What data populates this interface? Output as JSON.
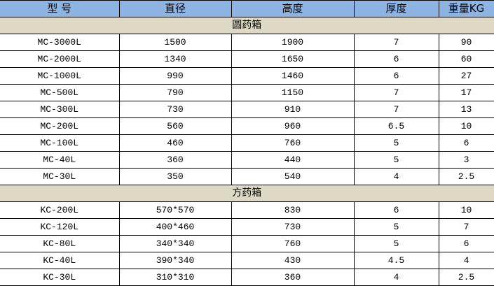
{
  "headers": [
    "型 号",
    "直径",
    "高度",
    "厚度",
    "重量KG"
  ],
  "sections": [
    {
      "title": "圆药箱",
      "rows": [
        [
          "MC-3000L",
          "1500",
          "1900",
          "7",
          "90"
        ],
        [
          "MC-2000L",
          "1340",
          "1650",
          "6",
          "60"
        ],
        [
          "MC-1000L",
          "990",
          "1460",
          "6",
          "27"
        ],
        [
          "MC-500L",
          "790",
          "1150",
          "7",
          "17"
        ],
        [
          "MC-300L",
          "730",
          "910",
          "7",
          "13"
        ],
        [
          "MC-200L",
          "560",
          "960",
          "6.5",
          "10"
        ],
        [
          "MC-100L",
          "460",
          "760",
          "5",
          "6"
        ],
        [
          "MC-40L",
          "360",
          "440",
          "5",
          "3"
        ],
        [
          "MC-30L",
          "350",
          "540",
          "4",
          "2.5"
        ]
      ]
    },
    {
      "title": "方药箱",
      "rows": [
        [
          "KC-200L",
          "570*570",
          "830",
          "6",
          "10"
        ],
        [
          "KC-120L",
          "400*460",
          "730",
          "5",
          "7"
        ],
        [
          "KC-80L",
          "340*340",
          "760",
          "5",
          "6"
        ],
        [
          "KC-40L",
          "390*340",
          "430",
          "4.5",
          "4"
        ],
        [
          "KC-30L",
          "310*310",
          "360",
          "4",
          "2.5"
        ]
      ]
    }
  ],
  "colors": {
    "header_bg": "#8db4e2",
    "section_bg": "#ddd9c4",
    "border": "#000000"
  }
}
